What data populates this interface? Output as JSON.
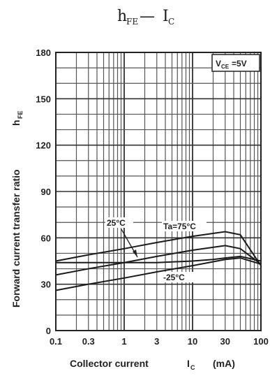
{
  "chart_data": {
    "type": "line",
    "title": "hFE — IC",
    "title_parts": {
      "main_h": "h",
      "main_h_sub": "FE",
      "dash": " — ",
      "main_i": "I",
      "main_i_sub": "C"
    },
    "xlabel": "Collector current",
    "xlabel_symbol": "I",
    "xlabel_symbol_sub": "C",
    "xlabel_unit": "(mA)",
    "ylabel": "Forward current transfer ratio",
    "ylabel_symbol": "h",
    "ylabel_symbol_sub": "FE",
    "x_scale": "log",
    "xlim": [
      0.1,
      100
    ],
    "ylim": [
      0,
      180
    ],
    "x_ticks": [
      {
        "value": 0.1,
        "label": "0.1"
      },
      {
        "value": 0.3,
        "label": "0.3"
      },
      {
        "value": 1,
        "label": "1"
      },
      {
        "value": 3,
        "label": "3"
      },
      {
        "value": 10,
        "label": "10"
      },
      {
        "value": 30,
        "label": "30"
      },
      {
        "value": 100,
        "label": "100"
      }
    ],
    "y_ticks": [
      {
        "value": 0,
        "label": "0"
      },
      {
        "value": 30,
        "label": "30"
      },
      {
        "value": 60,
        "label": "60"
      },
      {
        "value": 90,
        "label": "90"
      },
      {
        "value": 120,
        "label": "120"
      },
      {
        "value": 150,
        "label": "150"
      },
      {
        "value": 180,
        "label": "180"
      }
    ],
    "grid": true,
    "condition": {
      "label": "V",
      "sub": "CE",
      "value": "=5V"
    },
    "series": [
      {
        "name": "Ta=75°C",
        "x": [
          0.1,
          0.3,
          1,
          3,
          10,
          30,
          50,
          100
        ],
        "y": [
          45,
          49,
          53,
          57,
          61,
          64,
          62,
          42
        ]
      },
      {
        "name": "25°C",
        "x": [
          0.1,
          0.3,
          1,
          3,
          10,
          30,
          50,
          100
        ],
        "y": [
          36,
          40,
          44,
          48,
          52,
          55,
          53,
          43
        ]
      },
      {
        "name": "-25°C",
        "x": [
          0.1,
          0.3,
          1,
          3,
          10,
          30,
          50,
          100
        ],
        "y": [
          26,
          30,
          34,
          38,
          42,
          46,
          47,
          43
        ]
      },
      {
        "name": "",
        "x": [
          0.1,
          1,
          3,
          10,
          20,
          30,
          50,
          100
        ],
        "y": [
          44,
          44,
          44,
          45,
          46,
          47,
          48,
          45
        ]
      }
    ],
    "annotations": [
      {
        "text": "25°C"
      },
      {
        "text": "Ta=75°C"
      },
      {
        "text": "-25°C"
      }
    ]
  }
}
